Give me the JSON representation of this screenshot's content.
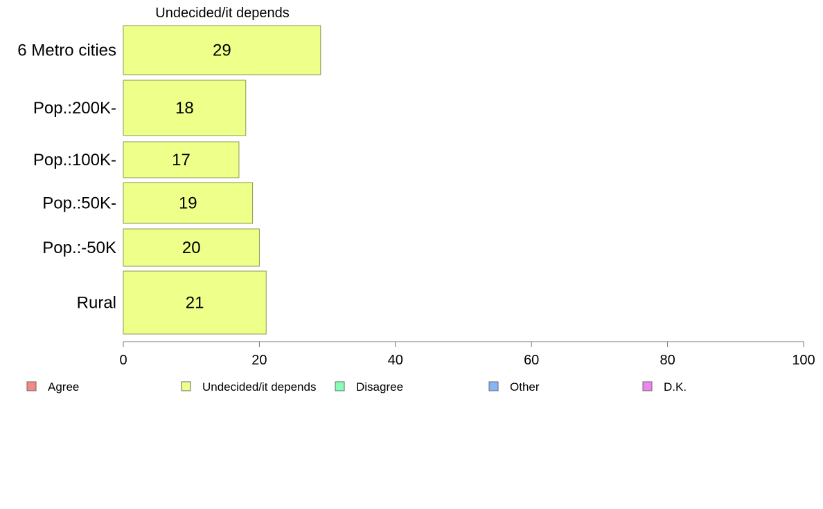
{
  "chart_data": {
    "type": "bar",
    "orientation": "horizontal",
    "title": "Undecided/it depends",
    "categories": [
      "6 Metro cities",
      "Pop.:200K-",
      "Pop.:100K-",
      "Pop.:50K-",
      "Pop.:-50K",
      "Rural"
    ],
    "values": [
      29,
      18,
      17,
      19,
      20,
      21
    ],
    "value_labels": [
      "29",
      "18",
      "17",
      "19",
      "20",
      "21"
    ],
    "xlim": [
      0,
      100
    ],
    "xticks": [
      0,
      20,
      40,
      60,
      80,
      100
    ],
    "xtick_labels": [
      "0",
      "20",
      "40",
      "60",
      "80",
      "100"
    ],
    "bar_color": "#eeff8a",
    "bar_stroke": "#8a9a55",
    "grid": false,
    "legend": {
      "placement": "bottom",
      "entries": [
        {
          "label": "Agree",
          "color": "#f58a84"
        },
        {
          "label": "Undecided/it depends",
          "color": "#eeff8a"
        },
        {
          "label": "Disagree",
          "color": "#85ffb5"
        },
        {
          "label": "Other",
          "color": "#85b5f5"
        },
        {
          "label": "D.K.",
          "color": "#ee85ee"
        }
      ]
    }
  }
}
